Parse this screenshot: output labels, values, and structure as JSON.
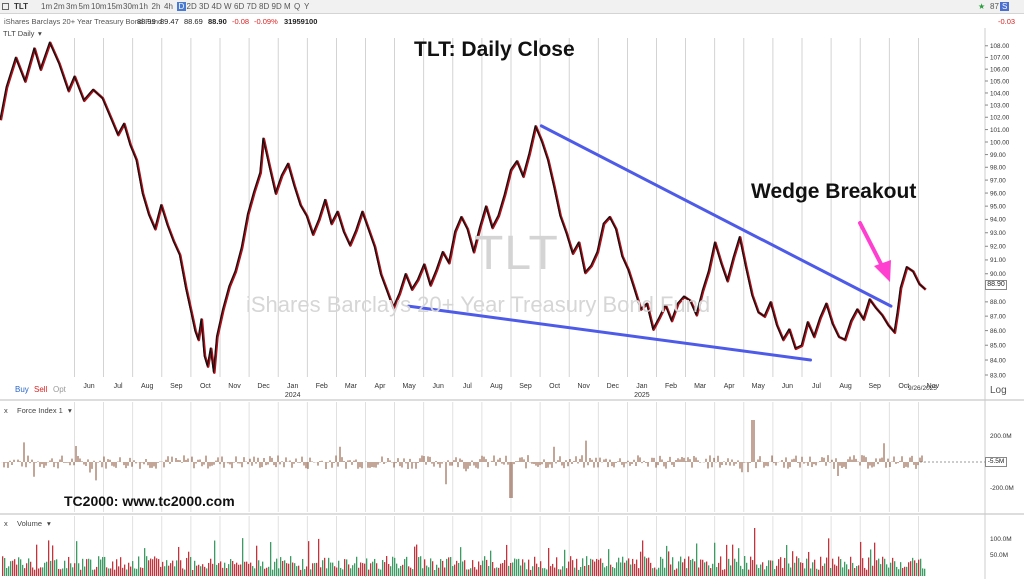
{
  "toolbar": {
    "symbol": "TLT",
    "intervals": [
      "1m",
      "2m",
      "3m",
      "5m",
      "10m",
      "15m",
      "30m",
      "1h",
      "2h",
      "4h",
      "D",
      "2D",
      "3D",
      "4D",
      "W",
      "6D",
      "7D",
      "8D",
      "9D",
      "M",
      "Q",
      "Y"
    ],
    "active_interval": "D",
    "right_badge": "87",
    "right_value": "-0.03"
  },
  "infobar": {
    "name": "iShares Barclays 20+ Year Treasury Bond Fund",
    "open": "88.99",
    "high": "89.47",
    "low": "88.69",
    "close": "88.90",
    "change": "-0.08",
    "pct": "-0.09%",
    "volume": "31959100"
  },
  "panes": {
    "price_label": "TLT Daily",
    "force_label": "Force Index 1",
    "volume_label": "Volume",
    "buy": "Buy",
    "sell": "Sell",
    "opt": "Opt",
    "log": "Log",
    "date_tag": "9/26/2025",
    "last_price": "88.90",
    "last_force": "-5.5M"
  },
  "annotations": {
    "title": "TLT:  Daily Close",
    "wedge": "Wedge Breakout",
    "watermark": "TC2000:  www.tc2000.com",
    "bg_symbol": "TLT",
    "bg_name": "iShares Barclays 20+ Year Treasury Bond Fund"
  },
  "colors": {
    "price_line": "#111111",
    "price_shadow": "#b0101a",
    "trendline": "#4d5be8",
    "arrow": "#ff3fd0",
    "bar_green": "#3c9a63",
    "bar_red": "#c0343e"
  },
  "chart_data": {
    "type": "line",
    "title": "TLT:  Daily Close",
    "y_scale": "log",
    "ylim": [
      83,
      108.5
    ],
    "y_ticks": [
      "83.00",
      "84.00",
      "85.00",
      "86.00",
      "87.00",
      "88.00",
      "89.00",
      "90.00",
      "91.00",
      "92.00",
      "93.00",
      "94.00",
      "95.00",
      "96.00",
      "97.00",
      "98.00",
      "99.00",
      "100.00",
      "101.00",
      "102.00",
      "103.00",
      "104.00",
      "105.00",
      "106.00",
      "107.00",
      "108.00"
    ],
    "x_labels": [
      "Jun",
      "Jul",
      "Aug",
      "Sep",
      "Oct",
      "Nov",
      "Dec",
      "Jan",
      "Feb",
      "Mar",
      "Apr",
      "May",
      "Jun",
      "Jul",
      "Aug",
      "Sep",
      "Oct",
      "Nov",
      "Dec",
      "Jan",
      "Feb",
      "Mar",
      "Apr",
      "May",
      "Jun",
      "Jul",
      "Aug",
      "Sep",
      "Oct",
      "Nov"
    ],
    "year_labels": [
      {
        "after": "Jan",
        "index": 7,
        "text": "2024"
      },
      {
        "after": "Jan",
        "index": 19,
        "text": "2025"
      }
    ],
    "series": [
      {
        "points": [
          [
            0,
            101.8
          ],
          [
            2,
            104.5
          ],
          [
            5,
            107.0
          ],
          [
            8,
            105.0
          ],
          [
            11,
            107.8
          ],
          [
            13,
            106.0
          ],
          [
            16,
            108.3
          ],
          [
            19,
            106.5
          ],
          [
            22,
            104.2
          ],
          [
            24,
            105.4
          ],
          [
            27,
            103.4
          ],
          [
            30,
            104.3
          ],
          [
            33,
            103.6
          ],
          [
            36,
            101.8
          ],
          [
            38,
            100.6
          ],
          [
            40,
            101.5
          ],
          [
            42,
            99.8
          ],
          [
            44,
            98.6
          ],
          [
            46,
            96.0
          ],
          [
            48,
            94.4
          ],
          [
            50,
            93.3
          ],
          [
            52,
            95.1
          ],
          [
            54,
            93.6
          ],
          [
            56,
            92.4
          ],
          [
            58,
            91.4
          ],
          [
            60,
            89.0
          ],
          [
            62,
            87.0
          ],
          [
            63,
            86.0
          ],
          [
            64,
            85.4
          ],
          [
            65,
            86.8
          ],
          [
            66,
            84.3
          ],
          [
            67,
            83.6
          ],
          [
            68,
            84.8
          ],
          [
            69,
            83.2
          ],
          [
            70,
            85.6
          ],
          [
            72,
            87.5
          ],
          [
            74,
            89.1
          ],
          [
            76,
            90.2
          ],
          [
            78,
            91.9
          ],
          [
            80,
            94.4
          ],
          [
            82,
            96.1
          ],
          [
            84,
            97.6
          ],
          [
            85,
            100.3
          ],
          [
            87,
            98.1
          ],
          [
            89,
            96.0
          ],
          [
            91,
            97.4
          ],
          [
            93,
            98.3
          ],
          [
            95,
            96.6
          ],
          [
            97,
            95.1
          ],
          [
            99,
            94.3
          ],
          [
            101,
            92.9
          ],
          [
            103,
            94.0
          ],
          [
            105,
            95.5
          ],
          [
            107,
            93.7
          ],
          [
            109,
            94.6
          ],
          [
            111,
            93.1
          ],
          [
            113,
            92.1
          ],
          [
            115,
            93.2
          ],
          [
            117,
            94.6
          ],
          [
            119,
            93.3
          ],
          [
            121,
            92.0
          ],
          [
            123,
            90.0
          ],
          [
            125,
            88.8
          ],
          [
            127,
            87.6
          ],
          [
            129,
            88.6
          ],
          [
            131,
            90.0
          ],
          [
            133,
            88.9
          ],
          [
            135,
            89.6
          ],
          [
            137,
            90.7
          ],
          [
            139,
            89.2
          ],
          [
            141,
            90.3
          ],
          [
            143,
            91.6
          ],
          [
            145,
            90.8
          ],
          [
            147,
            93.1
          ],
          [
            149,
            94.2
          ],
          [
            151,
            93.3
          ],
          [
            153,
            91.6
          ],
          [
            155,
            93.4
          ],
          [
            157,
            95.0
          ],
          [
            159,
            93.4
          ],
          [
            161,
            94.3
          ],
          [
            163,
            95.9
          ],
          [
            165,
            97.8
          ],
          [
            167,
            98.5
          ],
          [
            169,
            97.3
          ],
          [
            171,
            99.1
          ],
          [
            173,
            101.3
          ],
          [
            175,
            100.1
          ],
          [
            177,
            98.6
          ],
          [
            179,
            96.5
          ],
          [
            181,
            94.3
          ],
          [
            183,
            93.0
          ],
          [
            185,
            91.5
          ],
          [
            187,
            92.3
          ],
          [
            189,
            90.1
          ],
          [
            191,
            90.6
          ],
          [
            193,
            91.6
          ],
          [
            195,
            93.7
          ],
          [
            197,
            94.2
          ],
          [
            199,
            93.3
          ],
          [
            201,
            91.3
          ],
          [
            203,
            90.3
          ],
          [
            205,
            88.9
          ],
          [
            207,
            87.5
          ],
          [
            209,
            87.9
          ],
          [
            211,
            86.1
          ],
          [
            213,
            86.9
          ],
          [
            215,
            87.8
          ],
          [
            217,
            86.7
          ],
          [
            219,
            87.9
          ],
          [
            221,
            88.4
          ],
          [
            223,
            88.1
          ],
          [
            225,
            87.1
          ],
          [
            227,
            88.8
          ],
          [
            229,
            90.2
          ],
          [
            231,
            92.3
          ],
          [
            233,
            90.8
          ],
          [
            235,
            89.5
          ],
          [
            237,
            91.2
          ],
          [
            239,
            92.7
          ],
          [
            241,
            90.5
          ],
          [
            243,
            88.5
          ],
          [
            245,
            87.3
          ],
          [
            247,
            87.0
          ],
          [
            249,
            88.0
          ],
          [
            251,
            86.4
          ],
          [
            253,
            85.4
          ],
          [
            255,
            86.1
          ],
          [
            257,
            84.8
          ],
          [
            259,
            85.0
          ],
          [
            261,
            86.6
          ],
          [
            263,
            85.6
          ],
          [
            265,
            86.9
          ],
          [
            267,
            87.9
          ],
          [
            269,
            86.5
          ],
          [
            271,
            85.6
          ],
          [
            273,
            85.4
          ],
          [
            275,
            86.7
          ],
          [
            277,
            87.5
          ],
          [
            279,
            86.8
          ],
          [
            281,
            88.2
          ],
          [
            283,
            87.6
          ],
          [
            285,
            87.1
          ],
          [
            287,
            86.4
          ],
          [
            289,
            85.9
          ],
          [
            290,
            87.3
          ],
          [
            291,
            89.0
          ],
          [
            293,
            90.5
          ],
          [
            295,
            90.2
          ],
          [
            297,
            89.3
          ],
          [
            299,
            88.9
          ]
        ]
      }
    ],
    "trendlines": [
      {
        "from": [
          175,
          101.3
        ],
        "to": [
          288,
          87.7
        ]
      },
      {
        "from": [
          132,
          87.7
        ],
        "to": [
          262,
          84.0
        ]
      }
    ],
    "force_index_ticks": [
      "200.0M",
      "-200.0M"
    ],
    "volume_ticks": [
      "100.0M",
      "50.0M"
    ]
  }
}
